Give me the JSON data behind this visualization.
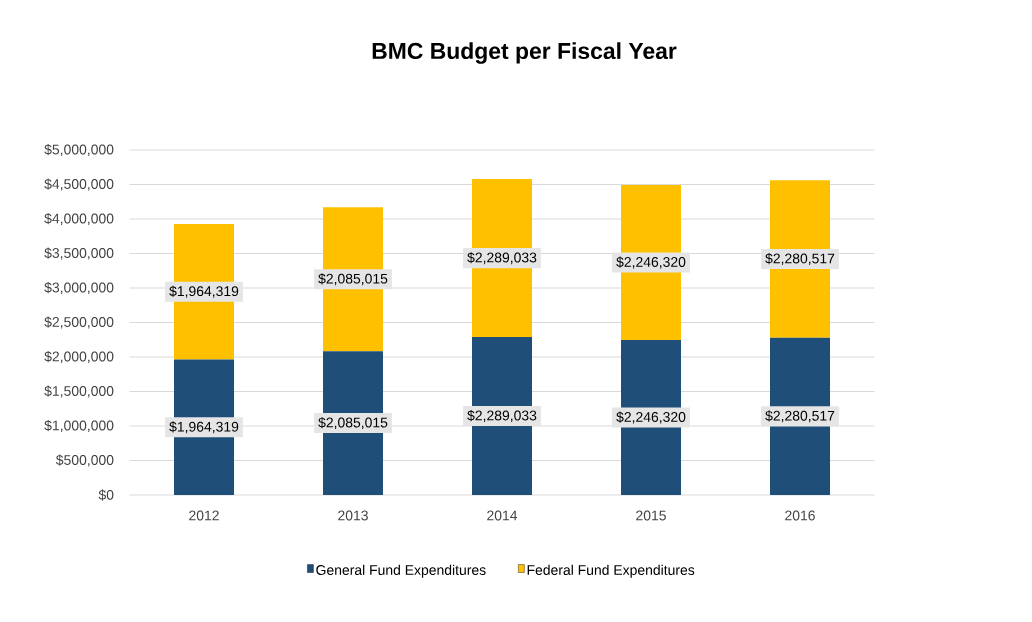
{
  "chart_data": {
    "type": "bar",
    "title": "BMC Budget per Fiscal Year",
    "stacked": true,
    "categories": [
      "2012",
      "2013",
      "2014",
      "2015",
      "2016"
    ],
    "series": [
      {
        "name": "General Fund Expenditures",
        "color": "#1f4e79",
        "values": [
          1964319,
          2085015,
          2289033,
          2246320,
          2280517
        ],
        "value_labels": [
          "$1,964,319",
          "$2,085,015",
          "$2,289,033",
          "$2,246,320",
          "$2,280,517"
        ]
      },
      {
        "name": "Federal Fund Expenditures",
        "color": "#ffc000",
        "values": [
          1964319,
          2085015,
          2289033,
          2246320,
          2280517
        ],
        "value_labels": [
          "$1,964,319",
          "$2,085,015",
          "$2,289,033",
          "$2,246,320",
          "$2,280,517"
        ]
      }
    ],
    "ylim": [
      0,
      5000000
    ],
    "yticks": [
      {
        "value": 0,
        "label": "$0"
      },
      {
        "value": 500000,
        "label": "$500,000"
      },
      {
        "value": 1000000,
        "label": "$1,000,000"
      },
      {
        "value": 1500000,
        "label": "$1,500,000"
      },
      {
        "value": 2000000,
        "label": "$2,000,000"
      },
      {
        "value": 2500000,
        "label": "$2,500,000"
      },
      {
        "value": 3000000,
        "label": "$3,000,000"
      },
      {
        "value": 3500000,
        "label": "$3,500,000"
      },
      {
        "value": 4000000,
        "label": "$4,000,000"
      },
      {
        "value": 4500000,
        "label": "$4,500,000"
      },
      {
        "value": 5000000,
        "label": "$5,000,000"
      }
    ],
    "grid": "y",
    "legend": "bottom"
  }
}
